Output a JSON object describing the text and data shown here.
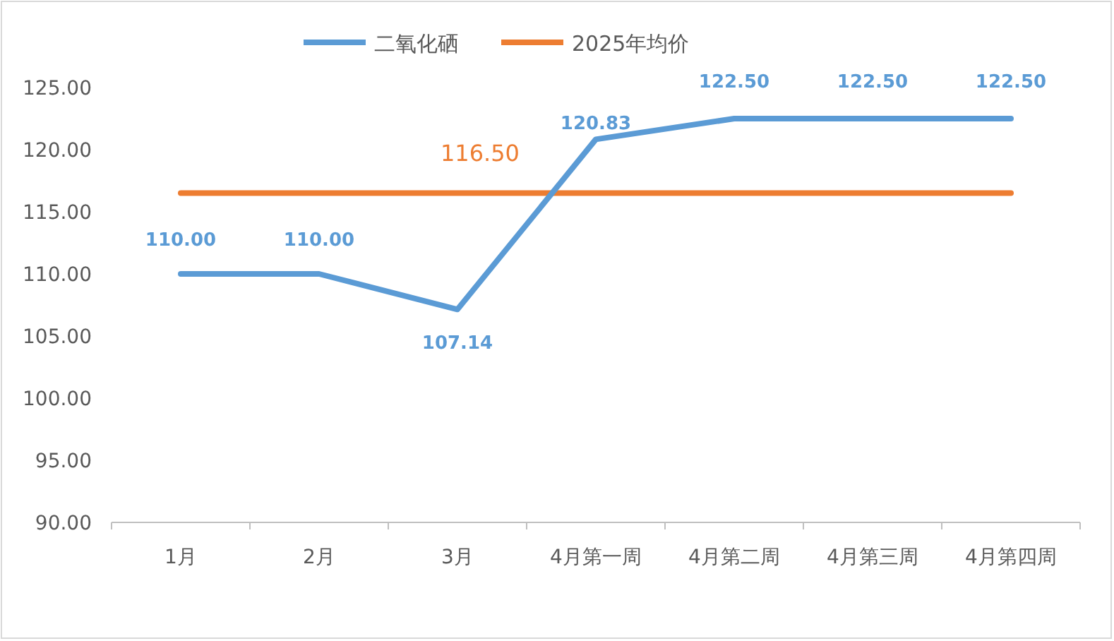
{
  "chart_data": {
    "type": "line",
    "categories": [
      "1月",
      "2月",
      "3月",
      "4月第一周",
      "4月第二周",
      "4月第三周",
      "4月第四周"
    ],
    "series": [
      {
        "name": "二氧化硒",
        "color": "#5b9bd5",
        "values": [
          110.0,
          110.0,
          107.14,
          120.83,
          122.5,
          122.5,
          122.5
        ],
        "value_labels": [
          "110.00",
          "110.00",
          "107.14",
          "120.83",
          "122.50",
          "122.50",
          "122.50"
        ]
      },
      {
        "name": "2025年均价",
        "color": "#ed7d31",
        "values": [
          116.5,
          116.5,
          116.5,
          116.5,
          116.5,
          116.5,
          116.5
        ],
        "value_labels": [
          null,
          null,
          "116.50",
          null,
          null,
          null,
          null
        ]
      }
    ],
    "ylim": [
      90,
      125
    ],
    "yticks": [
      {
        "value": 90,
        "label": "90.00"
      },
      {
        "value": 95,
        "label": "95.00"
      },
      {
        "value": 100,
        "label": "100.00"
      },
      {
        "value": 105,
        "label": "105.00"
      },
      {
        "value": 110,
        "label": "110.00"
      },
      {
        "value": 115,
        "label": "115.00"
      },
      {
        "value": 120,
        "label": "120.00"
      },
      {
        "value": 125,
        "label": "125.00"
      }
    ],
    "grid": false,
    "legend": "top",
    "marker": "none",
    "line_style": "solid"
  }
}
